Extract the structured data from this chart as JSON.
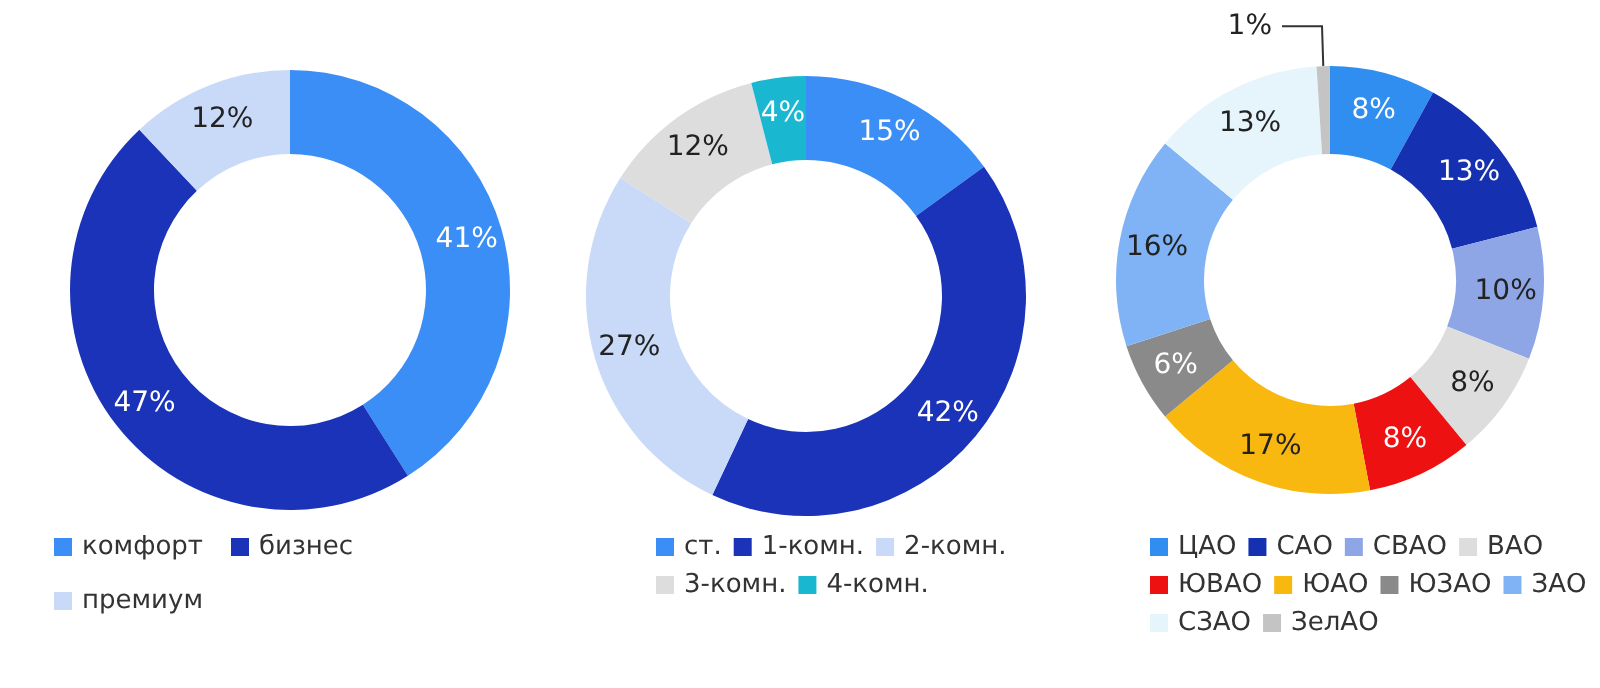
{
  "chart_data": [
    {
      "type": "donut",
      "categories": [
        "комфорт",
        "бизнес",
        "премиум"
      ],
      "values": [
        41,
        47,
        12
      ],
      "value_labels": [
        "41%",
        "47%",
        "12%"
      ],
      "colors": [
        "#3a8ef6",
        "#1a33b8",
        "#c9d9f8"
      ],
      "legend": "bottom"
    },
    {
      "type": "donut",
      "categories": [
        "ст.",
        "1-комн.",
        "2-комн.",
        "3-комн.",
        "4-комн."
      ],
      "values": [
        15,
        42,
        27,
        12,
        4
      ],
      "value_labels": [
        "15%",
        "42%",
        "27%",
        "12%",
        "4%"
      ],
      "colors": [
        "#3a8ef6",
        "#1a33b8",
        "#c9d9f8",
        "#dddddd",
        "#1ab8d0"
      ],
      "legend": "bottom"
    },
    {
      "type": "donut",
      "categories": [
        "ЦАО",
        "САО",
        "СВАО",
        "ВАО",
        "ЮВАО",
        "ЮАО",
        "ЮЗАО",
        "ЗАО",
        "СЗАО",
        "ЗелАО"
      ],
      "values": [
        8,
        13,
        10,
        8,
        8,
        17,
        6,
        16,
        13,
        1
      ],
      "value_labels": [
        "8%",
        "13%",
        "10%",
        "8%",
        "8%",
        "17%",
        "6%",
        "16%",
        "13%",
        "1%"
      ],
      "colors": [
        "#2f8ef0",
        "#1530b0",
        "#8ea5e6",
        "#dddddd",
        "#ee1111",
        "#f8b810",
        "#8a8a8a",
        "#7fb3f5",
        "#e6f5fb",
        "#c4c4c4"
      ],
      "legend": "bottom"
    }
  ]
}
